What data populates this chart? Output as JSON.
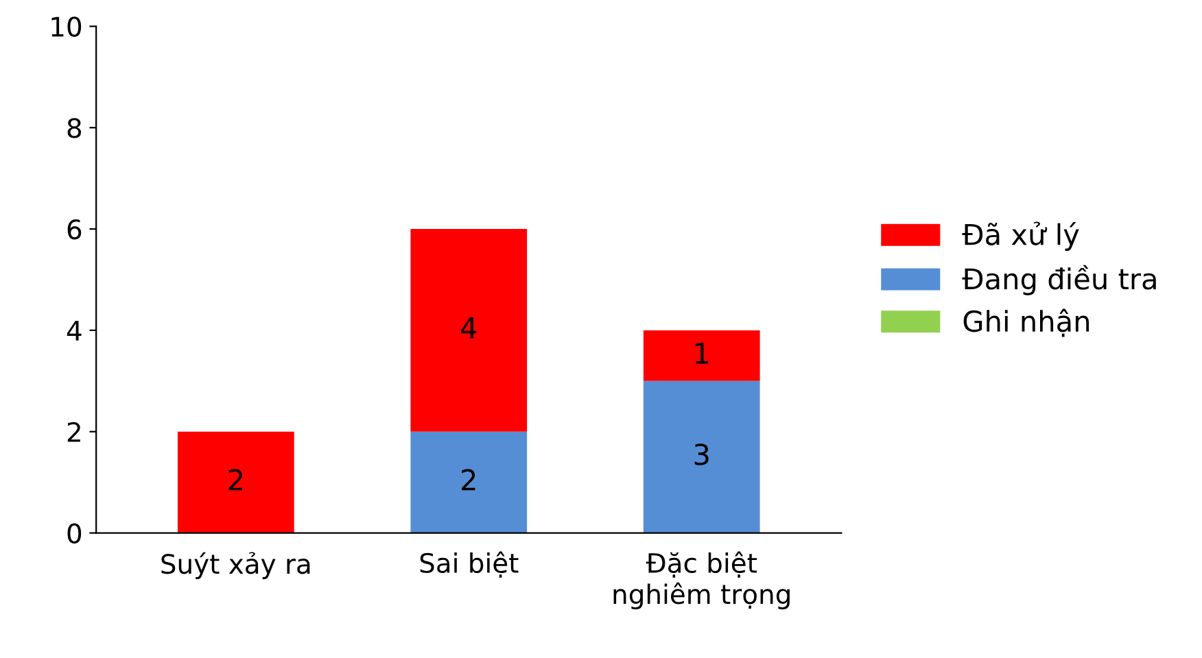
{
  "chart_data": {
    "type": "bar",
    "stacked": true,
    "categories": [
      "Suýt xảy ra",
      "Sai biệt",
      "Đặc biệt\nnghiêm trọng"
    ],
    "series": [
      {
        "name": "Ghi nhận",
        "color": "#92d050",
        "values": [
          0,
          0,
          0
        ],
        "value_labels": [
          null,
          null,
          null
        ]
      },
      {
        "name": "Đang điều tra",
        "color": "#558ed5",
        "values": [
          0,
          2,
          3
        ],
        "value_labels": [
          null,
          "2",
          "3"
        ]
      },
      {
        "name": "Đã xử lý",
        "color": "#ff0000",
        "values": [
          2,
          4,
          1
        ],
        "value_labels": [
          "2",
          "4",
          "1"
        ]
      }
    ],
    "ylim": [
      0,
      10
    ],
    "yticks": [
      0,
      2,
      4,
      6,
      8,
      10
    ],
    "grid": false,
    "legend": "right"
  }
}
